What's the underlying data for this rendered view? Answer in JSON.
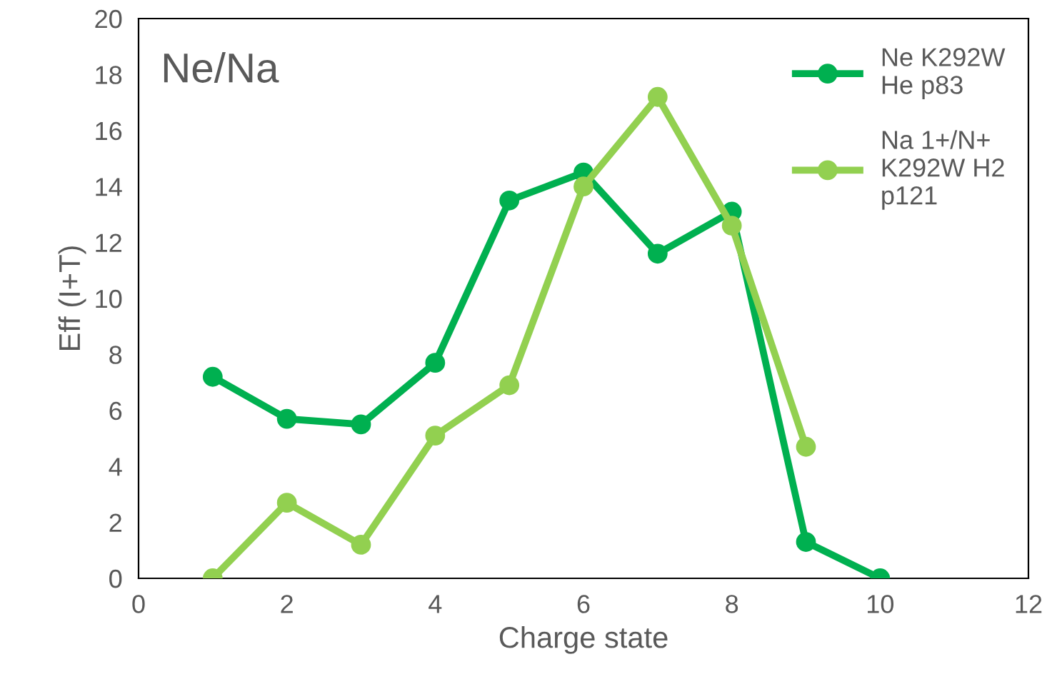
{
  "chart_data": {
    "type": "line",
    "title": "Ne/Na",
    "xlabel": "Charge state",
    "ylabel": "Eff (I+T)",
    "xlim": [
      0,
      12
    ],
    "xticks": [
      0,
      2,
      4,
      6,
      8,
      10,
      12
    ],
    "ylim": [
      0,
      20
    ],
    "yticks": [
      0,
      2,
      4,
      6,
      8,
      10,
      12,
      14,
      16,
      18,
      20
    ],
    "grid": false,
    "legend": "top right",
    "marker": "circle",
    "line_style": "solid",
    "series": [
      {
        "name": "Ne K292W\nHe p83",
        "color": "#00b050",
        "x": [
          1,
          2,
          3,
          4,
          5,
          6,
          7,
          8,
          9,
          10
        ],
        "values": [
          7.2,
          5.7,
          5.5,
          7.7,
          13.5,
          14.5,
          11.6,
          13.1,
          1.3,
          0
        ]
      },
      {
        "name": "Na 1+/N+\nK292W H2\np121",
        "color": "#92d050",
        "x": [
          1,
          2,
          3,
          4,
          5,
          6,
          7,
          8,
          9
        ],
        "values": [
          0,
          2.7,
          1.2,
          5.1,
          6.9,
          14.0,
          17.2,
          12.6,
          4.7
        ]
      }
    ]
  }
}
